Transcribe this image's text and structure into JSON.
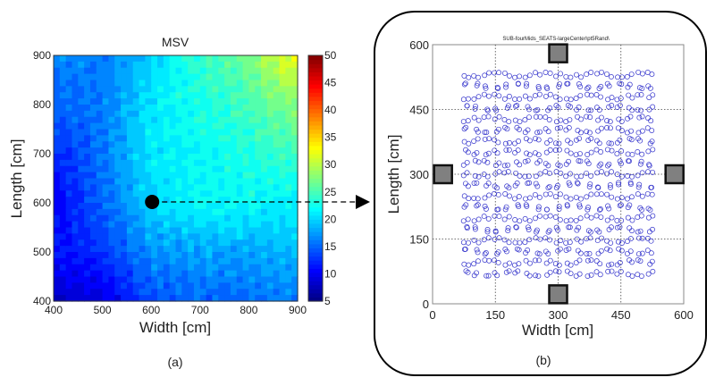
{
  "chart_data": [
    {
      "type": "heatmap",
      "title": "MSV",
      "xlabel": "Width [cm]",
      "ylabel": "Length [cm]",
      "xlim": [
        400,
        900
      ],
      "ylim": [
        400,
        900
      ],
      "xticks": [
        "400",
        "500",
        "600",
        "700",
        "800",
        "900"
      ],
      "yticks": [
        "400",
        "500",
        "600",
        "700",
        "800",
        "900"
      ],
      "grid_x": [
        400,
        500,
        600,
        700,
        800,
        900
      ],
      "grid_y": [
        900,
        800,
        700,
        600,
        500,
        400
      ],
      "values": [
        [
          17,
          16,
          20,
          24,
          27,
          33
        ],
        [
          15,
          16,
          21,
          23,
          25,
          28
        ],
        [
          12,
          16,
          21,
          22,
          23,
          25
        ],
        [
          10,
          15,
          20,
          22,
          22,
          21
        ],
        [
          11,
          13,
          17,
          18,
          18,
          19
        ],
        [
          8,
          9,
          14,
          15,
          15,
          16
        ]
      ],
      "colorbar": {
        "min": 5,
        "max": 50,
        "ticks": [
          "5",
          "10",
          "15",
          "20",
          "25",
          "30",
          "35",
          "40",
          "45",
          "50"
        ],
        "colormap": "jet"
      },
      "marker": {
        "x": 600,
        "y": 600
      },
      "panel_label": "(a)"
    },
    {
      "type": "scatter",
      "title": "SUB-fourMids_SEATS-largeCenter\\pt5Rand\\",
      "xlabel": "Width [cm]",
      "ylabel": "Length [cm]",
      "xlim": [
        0,
        600
      ],
      "ylim": [
        0,
        600
      ],
      "xticks": [
        "0",
        "150",
        "300",
        "450",
        "600"
      ],
      "yticks": [
        "0",
        "150",
        "300",
        "450",
        "600"
      ],
      "seat_grid": {
        "x_start": 80,
        "x_end": 520,
        "y_start": 70,
        "y_end": 530,
        "count": 19,
        "jitter": 6
      },
      "subwoofers": [
        {
          "x": 300,
          "y": 580
        },
        {
          "x": 300,
          "y": 22
        },
        {
          "x": 25,
          "y": 300
        },
        {
          "x": 578,
          "y": 300
        }
      ],
      "series_color": "#3333cc",
      "panel_label": "(b)"
    }
  ]
}
